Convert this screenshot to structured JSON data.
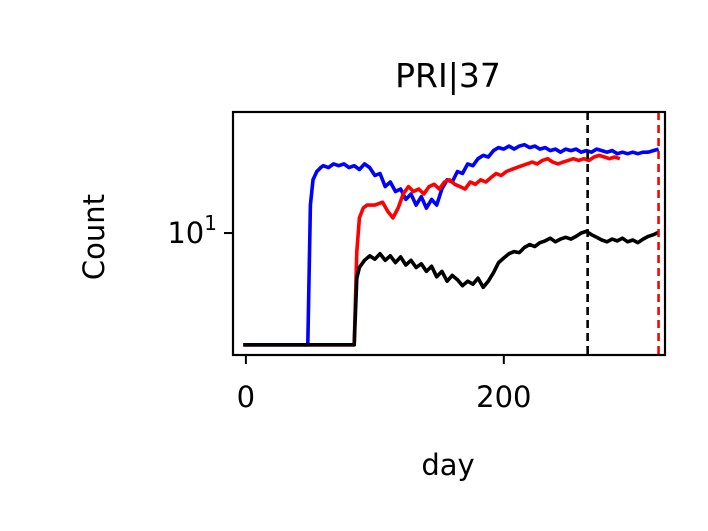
{
  "chart_data": {
    "type": "line",
    "title": "PRI|37",
    "xlabel": "day",
    "ylabel": "Count",
    "x_ticks": [
      0,
      200
    ],
    "y_ticks": [
      {
        "value": 10,
        "label_base": "10",
        "label_exp": "1"
      }
    ],
    "xlim": [
      -10,
      325
    ],
    "ylim": [
      2.3,
      43
    ],
    "yscale": "log",
    "grid": false,
    "legend": "none",
    "series": [
      {
        "color": "#0000ff",
        "points": [
          [
            -2,
            2.6
          ],
          [
            48,
            2.6
          ],
          [
            48,
            2.6
          ],
          [
            50,
            14
          ],
          [
            52,
            19
          ],
          [
            55,
            21
          ],
          [
            58,
            22
          ],
          [
            60,
            22.5
          ],
          [
            64,
            22
          ],
          [
            68,
            23
          ],
          [
            72,
            22.5
          ],
          [
            76,
            23
          ],
          [
            80,
            22
          ],
          [
            84,
            22.5
          ],
          [
            88,
            21.5
          ],
          [
            92,
            23
          ],
          [
            96,
            22
          ],
          [
            100,
            20
          ],
          [
            104,
            20.5
          ],
          [
            108,
            17.5
          ],
          [
            112,
            18.5
          ],
          [
            116,
            16.5
          ],
          [
            120,
            17
          ],
          [
            124,
            15
          ],
          [
            128,
            16
          ],
          [
            132,
            14
          ],
          [
            136,
            15.5
          ],
          [
            140,
            13.5
          ],
          [
            144,
            15
          ],
          [
            148,
            14
          ],
          [
            152,
            17
          ],
          [
            156,
            19
          ],
          [
            160,
            18.5
          ],
          [
            164,
            21
          ],
          [
            168,
            20.5
          ],
          [
            172,
            23
          ],
          [
            176,
            22.5
          ],
          [
            180,
            24.5
          ],
          [
            184,
            25.5
          ],
          [
            188,
            25
          ],
          [
            192,
            27
          ],
          [
            196,
            28
          ],
          [
            200,
            27.5
          ],
          [
            204,
            28.5
          ],
          [
            208,
            27.5
          ],
          [
            212,
            28.5
          ],
          [
            216,
            29
          ],
          [
            220,
            28
          ],
          [
            224,
            28.5
          ],
          [
            228,
            27.5
          ],
          [
            232,
            28
          ],
          [
            236,
            27
          ],
          [
            240,
            27.5
          ],
          [
            244,
            26.5
          ],
          [
            248,
            27.5
          ],
          [
            252,
            27
          ],
          [
            256,
            27.5
          ],
          [
            260,
            26.5
          ],
          [
            264,
            27
          ],
          [
            268,
            26.5
          ],
          [
            272,
            27.5
          ],
          [
            276,
            27
          ],
          [
            280,
            26.5
          ],
          [
            284,
            27
          ],
          [
            288,
            26
          ],
          [
            292,
            26.5
          ],
          [
            296,
            26
          ],
          [
            300,
            26.5
          ],
          [
            304,
            26
          ],
          [
            308,
            26.5
          ],
          [
            312,
            26.5
          ],
          [
            316,
            27
          ],
          [
            320,
            27.5
          ]
        ]
      },
      {
        "color": "#ff0000",
        "points": [
          [
            -2,
            2.6
          ],
          [
            82,
            2.6
          ],
          [
            84,
            2.6
          ],
          [
            86,
            8
          ],
          [
            88,
            12
          ],
          [
            91,
            13.5
          ],
          [
            94,
            14
          ],
          [
            100,
            14
          ],
          [
            106,
            14.5
          ],
          [
            110,
            13
          ],
          [
            114,
            12
          ],
          [
            118,
            13.5
          ],
          [
            122,
            16
          ],
          [
            126,
            17.5
          ],
          [
            130,
            16.5
          ],
          [
            134,
            17
          ],
          [
            138,
            16
          ],
          [
            142,
            17.5
          ],
          [
            146,
            18
          ],
          [
            150,
            17
          ],
          [
            154,
            18.5
          ],
          [
            158,
            19
          ],
          [
            162,
            18
          ],
          [
            166,
            17.5
          ],
          [
            170,
            17
          ],
          [
            174,
            18.5
          ],
          [
            178,
            18
          ],
          [
            182,
            19
          ],
          [
            186,
            18.5
          ],
          [
            190,
            19.5
          ],
          [
            194,
            20.5
          ],
          [
            198,
            20
          ],
          [
            202,
            21
          ],
          [
            206,
            21.5
          ],
          [
            210,
            22
          ],
          [
            214,
            22.5
          ],
          [
            218,
            23
          ],
          [
            222,
            23.5
          ],
          [
            226,
            23
          ],
          [
            230,
            24
          ],
          [
            234,
            24.5
          ],
          [
            238,
            23.5
          ],
          [
            242,
            23
          ],
          [
            246,
            23.5
          ],
          [
            250,
            24
          ],
          [
            254,
            24.5
          ],
          [
            258,
            24
          ],
          [
            262,
            24.5
          ],
          [
            266,
            24
          ],
          [
            270,
            25
          ],
          [
            274,
            25.5
          ],
          [
            278,
            25
          ],
          [
            282,
            24.5
          ],
          [
            286,
            25
          ],
          [
            290,
            24.5
          ]
        ]
      },
      {
        "color": "#000000",
        "points": [
          [
            -2,
            2.6
          ],
          [
            82,
            2.6
          ],
          [
            84,
            2.6
          ],
          [
            86,
            5.8
          ],
          [
            88,
            6.6
          ],
          [
            92,
            7.2
          ],
          [
            96,
            7.6
          ],
          [
            100,
            7.3
          ],
          [
            104,
            7.8
          ],
          [
            108,
            7.2
          ],
          [
            112,
            7.6
          ],
          [
            116,
            7.0
          ],
          [
            120,
            7.5
          ],
          [
            124,
            6.8
          ],
          [
            128,
            7.2
          ],
          [
            132,
            6.6
          ],
          [
            136,
            6.9
          ],
          [
            140,
            6.3
          ],
          [
            144,
            6.7
          ],
          [
            148,
            5.9
          ],
          [
            152,
            6.3
          ],
          [
            156,
            5.6
          ],
          [
            160,
            6.0
          ],
          [
            164,
            5.7
          ],
          [
            168,
            5.3
          ],
          [
            172,
            5.6
          ],
          [
            176,
            5.4
          ],
          [
            180,
            5.8
          ],
          [
            184,
            5.2
          ],
          [
            188,
            5.6
          ],
          [
            192,
            6.2
          ],
          [
            196,
            7.0
          ],
          [
            200,
            7.4
          ],
          [
            204,
            7.8
          ],
          [
            208,
            8.0
          ],
          [
            212,
            7.9
          ],
          [
            216,
            8.4
          ],
          [
            220,
            8.7
          ],
          [
            224,
            8.5
          ],
          [
            228,
            8.9
          ],
          [
            232,
            9.1
          ],
          [
            236,
            9.4
          ],
          [
            240,
            9.0
          ],
          [
            244,
            9.3
          ],
          [
            248,
            9.5
          ],
          [
            252,
            9.3
          ],
          [
            256,
            9.6
          ],
          [
            260,
            10.0
          ],
          [
            264,
            10.2
          ],
          [
            268,
            9.8
          ],
          [
            272,
            9.5
          ],
          [
            276,
            9.2
          ],
          [
            280,
            9.0
          ],
          [
            284,
            9.3
          ],
          [
            288,
            9.1
          ],
          [
            292,
            9.4
          ],
          [
            296,
            9.0
          ],
          [
            300,
            9.2
          ],
          [
            304,
            8.9
          ],
          [
            308,
            9.3
          ],
          [
            312,
            9.6
          ],
          [
            316,
            9.8
          ],
          [
            320,
            10.1
          ]
        ]
      }
    ],
    "vlines": [
      {
        "x": 265,
        "color": "#000000",
        "style": "dashed"
      },
      {
        "x": 320,
        "color": "#ff0000",
        "style": "dashed"
      }
    ]
  }
}
